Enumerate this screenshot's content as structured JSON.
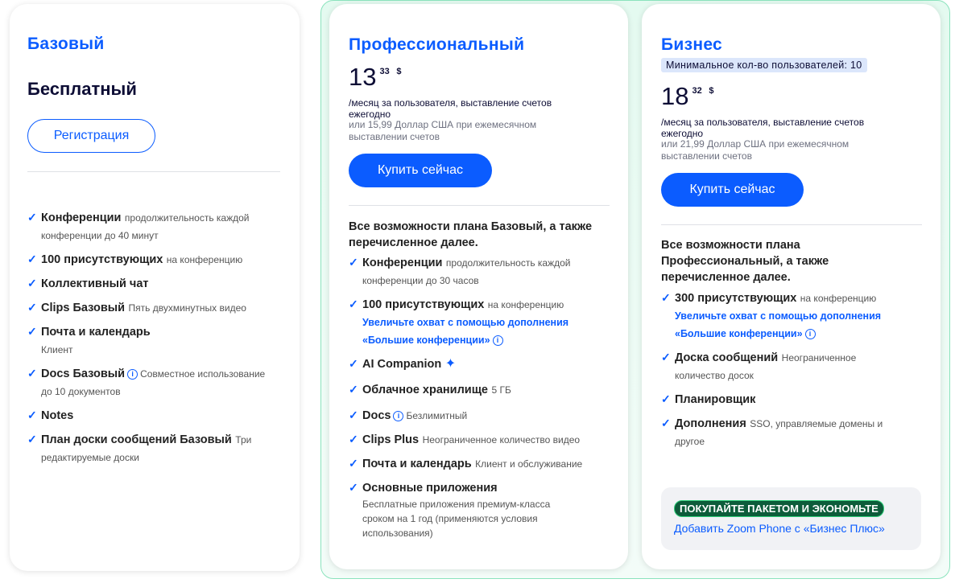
{
  "plans": [
    {
      "name": "Базовый",
      "price_label": "Бесплатный",
      "button": "Регистрация",
      "features": [
        {
          "title": "Конференции",
          "detail": "продолжительность каждой конференции до 40 минут"
        },
        {
          "title": "100 присутствующих",
          "detail": "на конференцию"
        },
        {
          "title": "Коллективный чат"
        },
        {
          "title": "Clips Базовый",
          "detail": "Пять двухминутных видео"
        },
        {
          "title": "Почта и календарь",
          "detail": "Клиент"
        },
        {
          "title": "Docs Базовый",
          "detail": "Совместное использование до 10 документов"
        },
        {
          "title": "Notes"
        },
        {
          "title": "План доски сообщений Базовый",
          "detail": "Три редактируемые доски"
        }
      ]
    },
    {
      "name": "Профессиональный",
      "price": {
        "whole": "13",
        "cents": "33",
        "currency": "$"
      },
      "period": "/месяц за пользователя, выставление счетов ежегодно",
      "alt_price": "или 15,99 Доллар США при ежемесячном выставлении счетов",
      "button": "Купить сейчас",
      "intro": "Все возможности плана Базовый, а также перечисленное далее.",
      "features": [
        {
          "title": "Конференции",
          "detail": "продолжительность каждой конференции до 30 часов"
        },
        {
          "title": "100 присутствующих",
          "detail": "на конференцию",
          "link": "Увеличьте охват с помощью дополнения «Большие конференции»"
        },
        {
          "title": "AI Companion"
        },
        {
          "title": "Облачное хранилище",
          "detail": "5 ГБ"
        },
        {
          "title": "Docs",
          "detail": "Безлимитный"
        },
        {
          "title": "Clips Plus",
          "detail": "Неограниченное количество видео"
        },
        {
          "title": "Почта и календарь",
          "detail": "Клиент и обслуживание"
        },
        {
          "title": "Основные приложения",
          "detail": "Бесплатные приложения премиум-класса сроком на 1 год (применяются условия использования)"
        }
      ]
    },
    {
      "name": "Бизнес",
      "badge": "Минимальное кол-во пользователей: 10",
      "price": {
        "whole": "18",
        "cents": "32",
        "currency": "$"
      },
      "period": "/месяц за пользователя, выставление счетов ежегодно",
      "alt_price": "или 21,99 Доллар США при ежемесячном выставлении счетов",
      "button": "Купить сейчас",
      "intro": "Все возможности плана Профессиональный, а также перечисленное далее.",
      "features": [
        {
          "title": "300 присутствующих",
          "detail": "на конференцию",
          "link": "Увеличьте охват с помощью дополнения «Большие конференции»"
        },
        {
          "title": "Доска сообщений",
          "detail": "Неограниченное количество досок"
        },
        {
          "title": "Планировщик"
        },
        {
          "title": "Дополнения",
          "detail": "SSO, управляемые домены и другое"
        }
      ],
      "promo": {
        "tag": "ПОКУПАЙТЕ ПАКЕТОМ И ЭКОНОМЬТЕ",
        "link": "Добавить Zoom Phone с «Бизнес Плюс»"
      }
    }
  ]
}
